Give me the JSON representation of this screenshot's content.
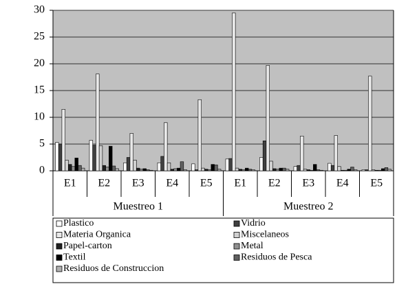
{
  "chart_data": {
    "type": "bar",
    "categories": [
      "E1",
      "E2",
      "E3",
      "E4",
      "E5",
      "E1",
      "E2",
      "E3",
      "E4",
      "E5"
    ],
    "category_groups": [
      "Muestreo 1",
      "Muestreo 2"
    ],
    "series": [
      {
        "name": "Plastico",
        "color": "#ffffff",
        "values": [
          5.3,
          5.7,
          1.5,
          1.5,
          1.3,
          2.2,
          2.5,
          0.8,
          1.4,
          0.2
        ]
      },
      {
        "name": "Vidrio",
        "color": "#404040",
        "values": [
          5.0,
          4.8,
          2.5,
          2.7,
          0.2,
          2.3,
          5.6,
          1.0,
          1.0,
          0.2
        ]
      },
      {
        "name": "Materia Organica",
        "color": "#e8e8e8",
        "values": [
          11.5,
          18.1,
          7.0,
          9.0,
          13.3,
          29.5,
          19.7,
          6.5,
          6.6,
          17.7
        ]
      },
      {
        "name": "Miscelaneos",
        "color": "#d0d0d0",
        "values": [
          2.0,
          4.7,
          2.0,
          1.5,
          0.5,
          0.5,
          1.8,
          0.3,
          0.8,
          0.2
        ]
      },
      {
        "name": "Papel-carton",
        "color": "#202020",
        "values": [
          1.2,
          1.0,
          0.5,
          0.3,
          0.3,
          0.3,
          0.4,
          0.2,
          0.1,
          0.1
        ]
      },
      {
        "name": "Metal",
        "color": "#909090",
        "values": [
          0.8,
          0.7,
          0.3,
          0.4,
          0.2,
          0.2,
          0.3,
          0.1,
          0.1,
          0.1
        ]
      },
      {
        "name": "Textil",
        "color": "#000000",
        "values": [
          2.4,
          4.6,
          0.4,
          0.5,
          1.2,
          0.5,
          0.5,
          1.2,
          0.3,
          0.4
        ]
      },
      {
        "name": "Residuos de Pesca",
        "color": "#606060",
        "values": [
          1.0,
          0.9,
          0.2,
          1.7,
          1.1,
          0.3,
          0.5,
          0.2,
          0.7,
          0.6
        ]
      },
      {
        "name": "Residuos de Construccion",
        "color": "#b0b0b0",
        "values": [
          0.5,
          0.4,
          0.1,
          0.2,
          0.3,
          0.2,
          0.3,
          0.1,
          0.2,
          0.3
        ]
      }
    ],
    "ylim": [
      0,
      30
    ],
    "yticks": [
      0,
      5,
      10,
      15,
      20,
      25,
      30
    ],
    "grid": true,
    "legend": "bottom"
  }
}
